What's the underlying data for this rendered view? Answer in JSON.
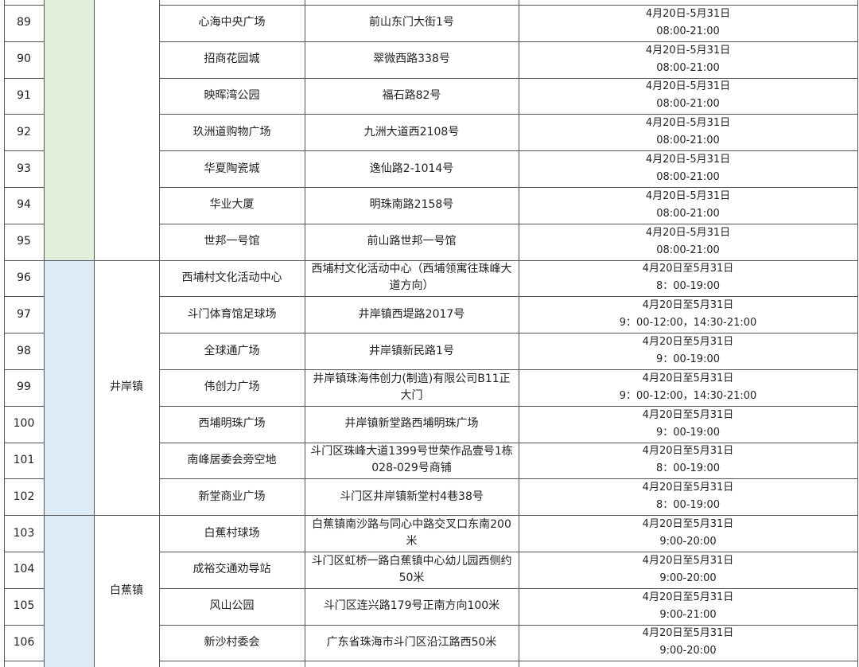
{
  "table": {
    "rows": [
      [
        "89",
        "心海中央广场",
        "前山东门大街1号",
        "4月20日-5月31日",
        "08:00-21:00"
      ],
      [
        "90",
        "招商花园城",
        "翠微西路338号",
        "4月20日-5月31日",
        "08:00-21:00"
      ],
      [
        "91",
        "映晖湾公园",
        "福石路82号",
        "4月20日-5月31日",
        "08:00-21:00"
      ],
      [
        "92",
        "玖洲道购物广场",
        "九洲大道西2108号",
        "4月20日-5月31日",
        "08:00-21:00"
      ],
      [
        "93",
        "华夏陶瓷城",
        "逸仙路2-1014号",
        "4月20日-5月31日",
        "08:00-21:00"
      ],
      [
        "94",
        "华业大厦",
        "明珠南路2158号",
        "4月20日-5月31日",
        "08:00-21:00"
      ],
      [
        "95",
        "世邦一号馆",
        "前山路世邦一号馆",
        "4月20日-5月31日",
        "08:00-21:00"
      ],
      [
        "96",
        "西埔村文化活动中心",
        "西埔村文化活动中心（西埔领寓往珠峰大道方向）",
        "4月20日至5月31日",
        "8：00-19:00"
      ],
      [
        "97",
        "斗门体育馆足球场",
        "井岸镇西堤路2017号",
        "4月20日至5月31日",
        "9：00-12:00，14:30-21:00"
      ],
      [
        "98",
        "全球通广场",
        "井岸镇新民路1号",
        "4月20日至5月31日",
        "9：00-19:00"
      ],
      [
        "99",
        "伟创力广场",
        "井岸镇珠海伟创力(制造)有限公司B11正大门",
        "4月20日至5月31日",
        "9：00-12:00，14:30-21:00"
      ],
      [
        "100",
        "西埔明珠广场",
        "井岸镇新堂路西埔明珠广场",
        "4月20日至5月31日",
        "9：00-19:00"
      ],
      [
        "101",
        "南峰居委会旁空地",
        "斗门区珠峰大道1399号世荣作品壹号1栋028-029号商铺",
        "4月20日至5月31日",
        "8：00-19:00"
      ],
      [
        "102",
        "新堂商业广场",
        "斗门区井岸镇新堂村4巷38号",
        "4月20日至5月31日",
        "8：00-19:00"
      ],
      [
        "103",
        "白蕉村球场",
        "白蕉镇南沙路与同心中路交叉口东南200米",
        "4月20日至5月31日",
        "9:00-20:00"
      ],
      [
        "104",
        "成裕交通劝导站",
        "斗门区虹桥一路白蕉镇中心幼儿园西侧约50米",
        "4月20日至5月31日",
        "9:00-20:00"
      ],
      [
        "105",
        "风山公园",
        "斗门区连兴路179号正南方向100米",
        "4月20日至5月31日",
        "9:00-21:00"
      ],
      [
        "106",
        "新沙村委会",
        "广东省珠海市斗门区沿江路西50米",
        "4月20日至5月31日",
        "9:00-20:00"
      ]
    ],
    "towns": [
      "井岸镇",
      "白蕉镇"
    ]
  }
}
